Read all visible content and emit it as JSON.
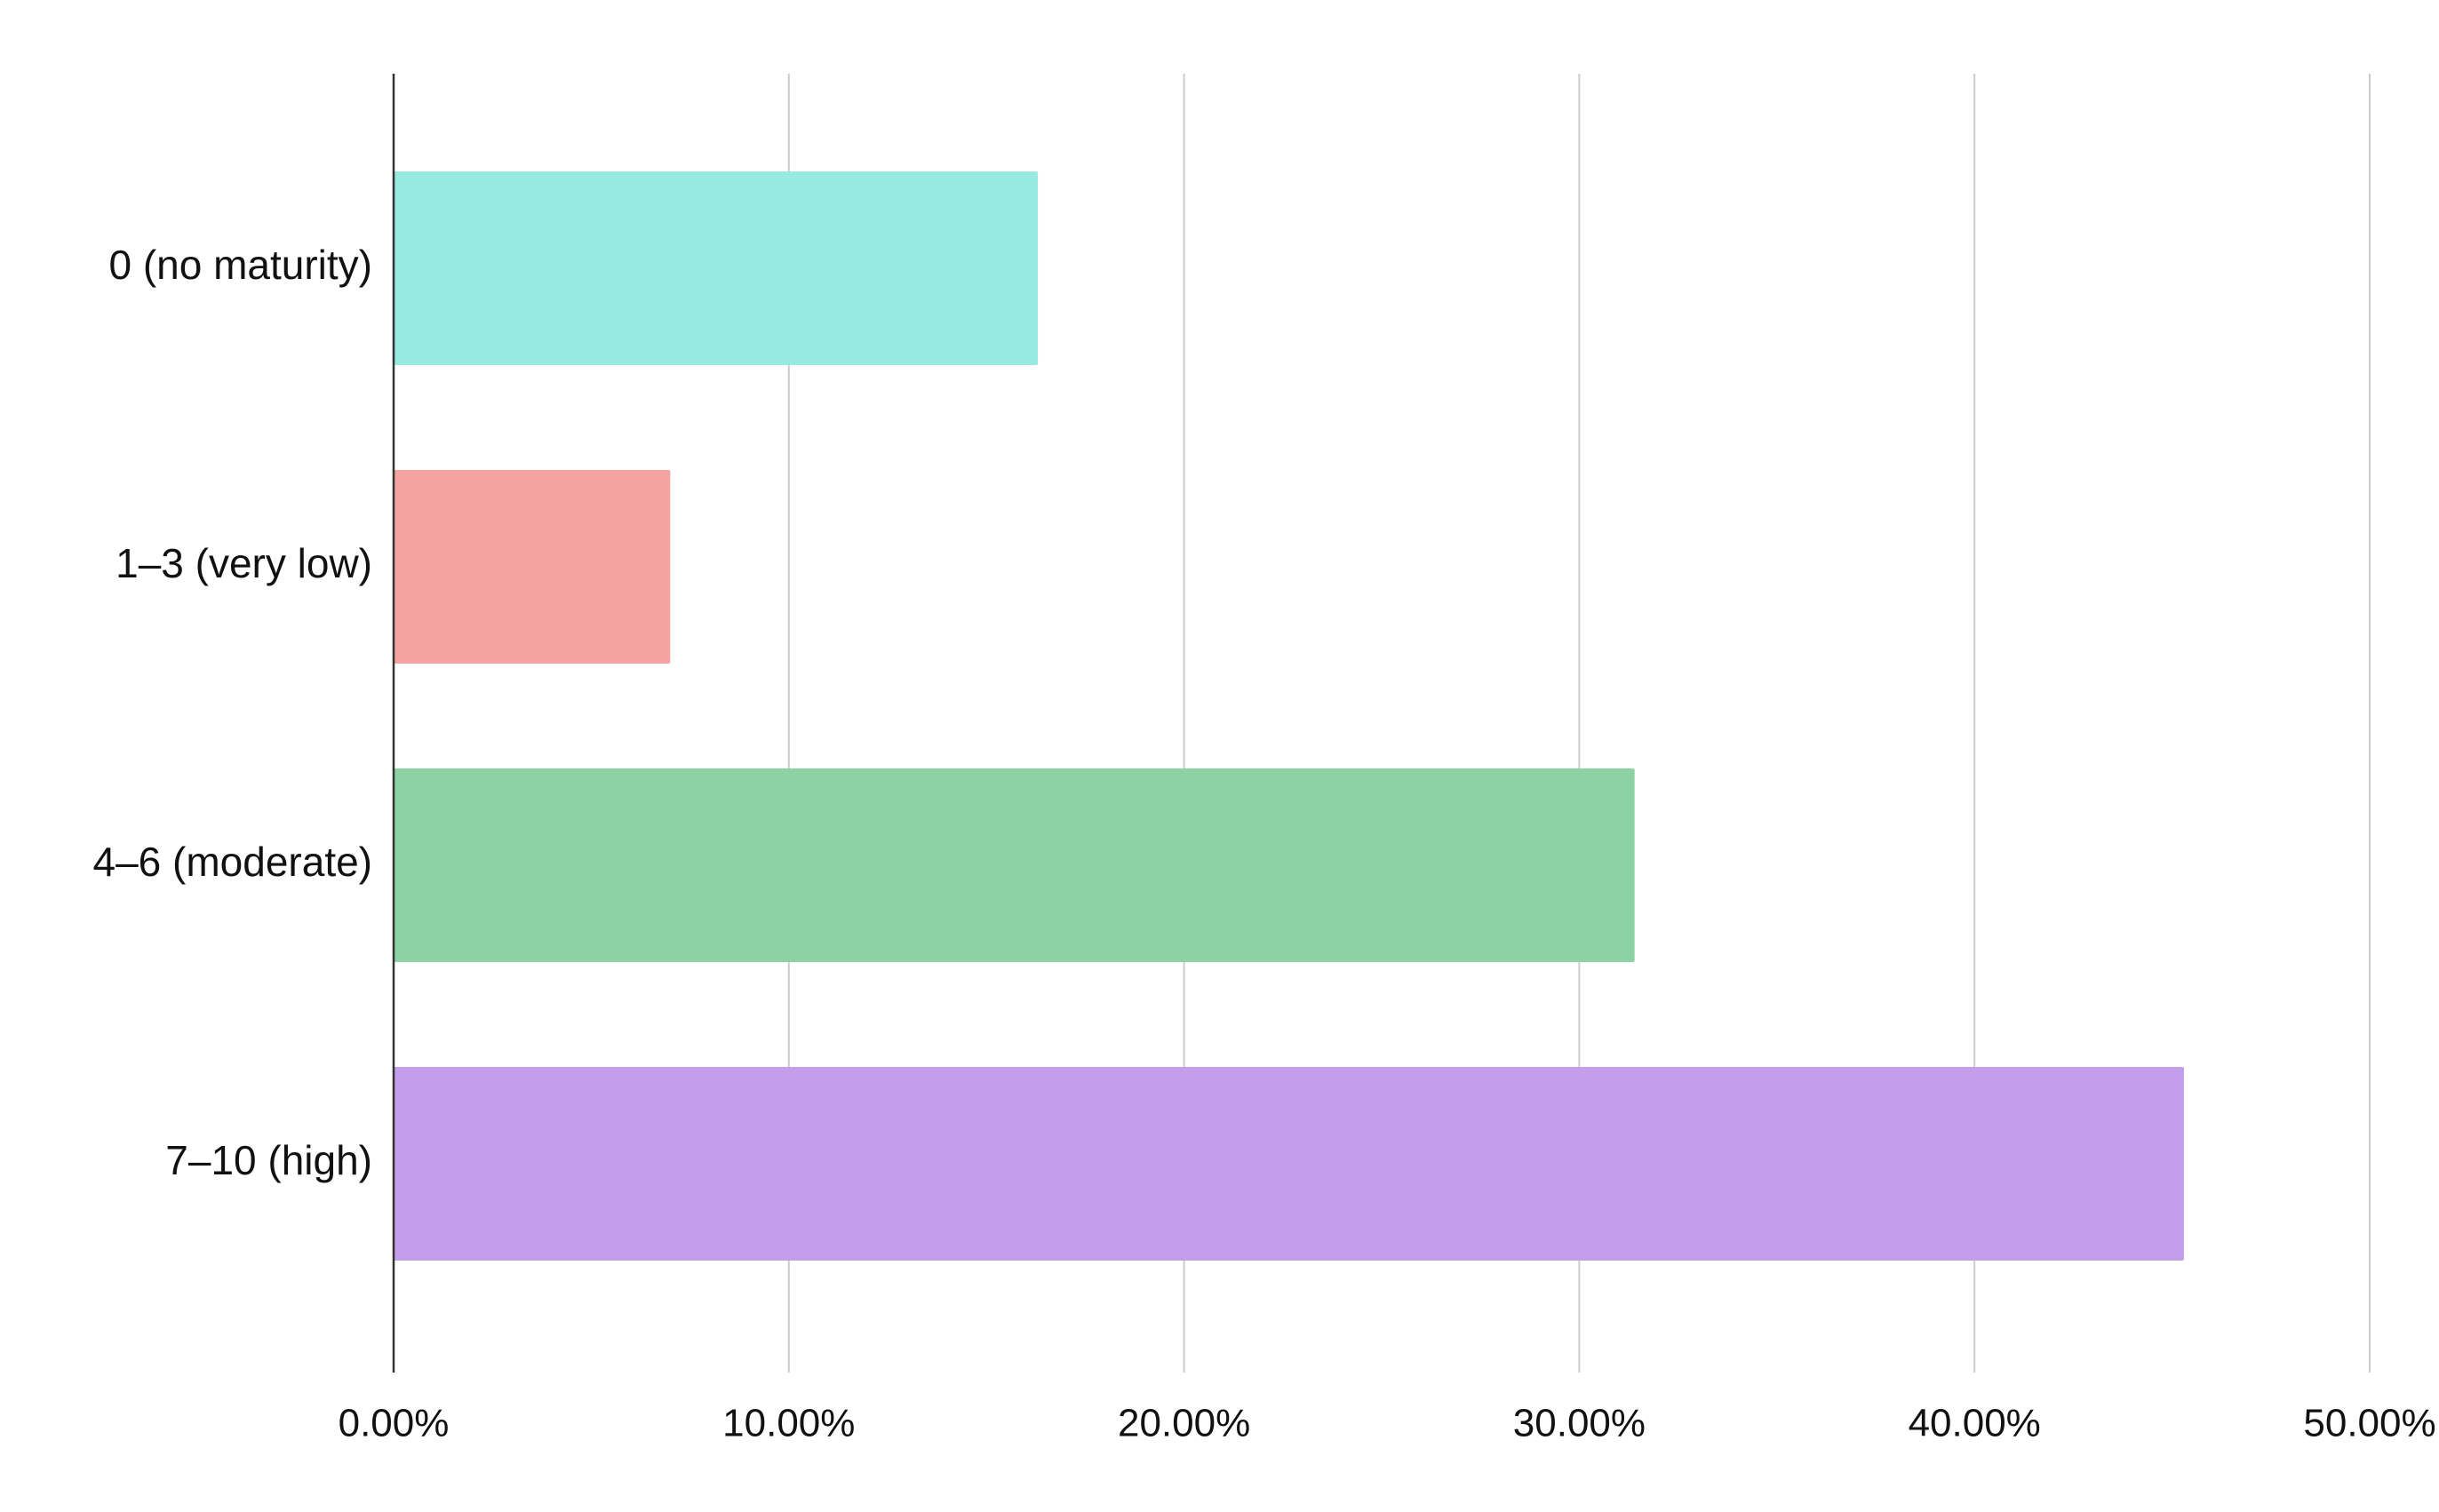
{
  "chart_data": {
    "type": "bar",
    "orientation": "horizontal",
    "title": "",
    "xlabel": "",
    "ylabel": "",
    "categories": [
      "0 (no maturity)",
      "1–3 (very low)",
      "4–6 (moderate)",
      "7–10 (high)"
    ],
    "values": [
      16.3,
      7.0,
      31.4,
      45.3
    ],
    "colors": [
      "#98E9DF",
      "#F4A2A2",
      "#8DD2A5",
      "#C59EEB"
    ],
    "xlim": [
      0,
      50
    ],
    "x_ticks": [
      0,
      10,
      20,
      30,
      40,
      50
    ],
    "x_tick_labels": [
      "0.00%",
      "10.00%",
      "20.00%",
      "30.00%",
      "40.00%",
      "50.00%"
    ],
    "grid": "vertical",
    "legend": "none"
  }
}
